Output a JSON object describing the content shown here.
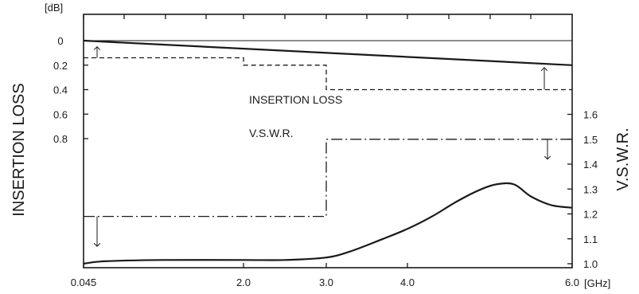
{
  "chart_data": {
    "type": "line",
    "xlabel": "",
    "x_unit": "[GHz]",
    "x_ticks": [
      "0.045",
      "2.0",
      "3.0",
      "4.0",
      "6.0"
    ],
    "left_axis": {
      "title": "INSERTION LOSS",
      "unit": "[dB]",
      "ticks": [
        "0",
        "0.2",
        "0.4",
        "0.6",
        "0.8"
      ],
      "tick_values": [
        0,
        0.2,
        0.4,
        0.6,
        0.8
      ],
      "inverted": true
    },
    "right_axis": {
      "title": "V.S.W.R.",
      "ticks": [
        "1.0",
        "1.1",
        "1.2",
        "1.3",
        "1.4",
        "1.5",
        "1.6"
      ],
      "tick_values": [
        1.0,
        1.1,
        1.2,
        1.3,
        1.4,
        1.5,
        1.6
      ]
    },
    "series": [
      {
        "name": "INSERTION LOSS",
        "axis": "left",
        "style": "solid",
        "x": [
          0.045,
          6.0
        ],
        "values": [
          0.0,
          0.2
        ]
      },
      {
        "axis": "left",
        "style": "dashed",
        "x": [
          0.045,
          2.0,
          2.0,
          3.0,
          3.0,
          6.0
        ],
        "values": [
          0.14,
          0.14,
          0.2,
          0.2,
          0.4,
          0.4
        ]
      },
      {
        "axis": "right",
        "style": "solid",
        "x": [
          0.045,
          0.3,
          1.0,
          2.0,
          2.5,
          3.0,
          3.3,
          3.7,
          4.0,
          4.3,
          4.6,
          4.9,
          5.1,
          5.3,
          5.5,
          5.75,
          6.0
        ],
        "values": [
          1.0,
          1.01,
          1.015,
          1.015,
          1.015,
          1.025,
          1.05,
          1.1,
          1.14,
          1.19,
          1.25,
          1.3,
          1.32,
          1.318,
          1.27,
          1.235,
          1.225
        ]
      },
      {
        "name": "V.S.W.R.",
        "axis": "right",
        "style": "dashdot",
        "x": [
          0.045,
          3.0,
          3.0,
          6.0
        ],
        "values": [
          1.19,
          1.19,
          1.5,
          1.5
        ]
      }
    ],
    "annotations": [
      "INSERTION LOSS",
      "V.S.W.R."
    ],
    "grid": false
  }
}
